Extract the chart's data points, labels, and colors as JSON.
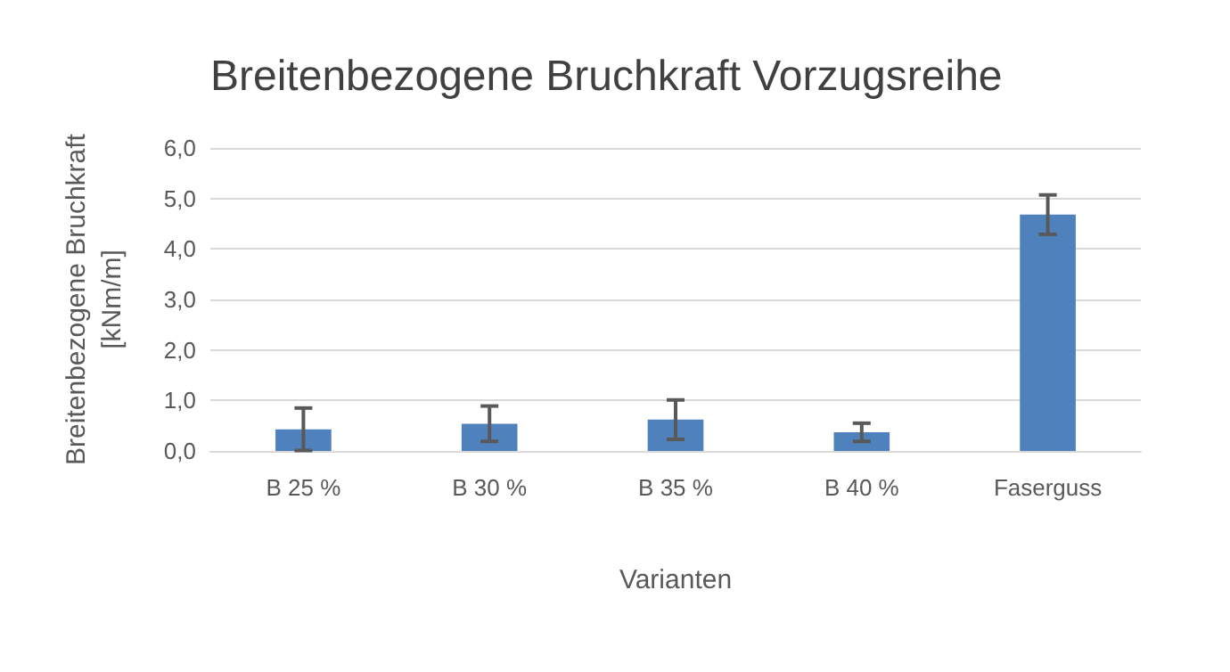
{
  "chart_data": {
    "type": "bar",
    "title": "Breitenbezogene Bruchkraft Vorzugsreihe",
    "xlabel": "Varianten",
    "ylabel": "Breitenbezogene Bruchkraft\n[kNm/m]",
    "categories": [
      "B 25 %",
      "B 30 %",
      "B 35 %",
      "B 40 %",
      "Faserguss"
    ],
    "values": [
      0.43,
      0.54,
      0.62,
      0.37,
      4.68
    ],
    "errors": [
      0.42,
      0.35,
      0.39,
      0.18,
      0.39
    ],
    "color": "#4f81bd",
    "ylim": [
      0,
      6
    ],
    "yticks": [
      {
        "value": 0,
        "label": "0,0"
      },
      {
        "value": 1,
        "label": "1,0"
      },
      {
        "value": 2,
        "label": "2,0"
      },
      {
        "value": 3,
        "label": "3,0"
      },
      {
        "value": 4,
        "label": "4,0"
      },
      {
        "value": 5,
        "label": "5,0"
      },
      {
        "value": 6,
        "label": "6,0"
      }
    ],
    "grid": "y"
  }
}
